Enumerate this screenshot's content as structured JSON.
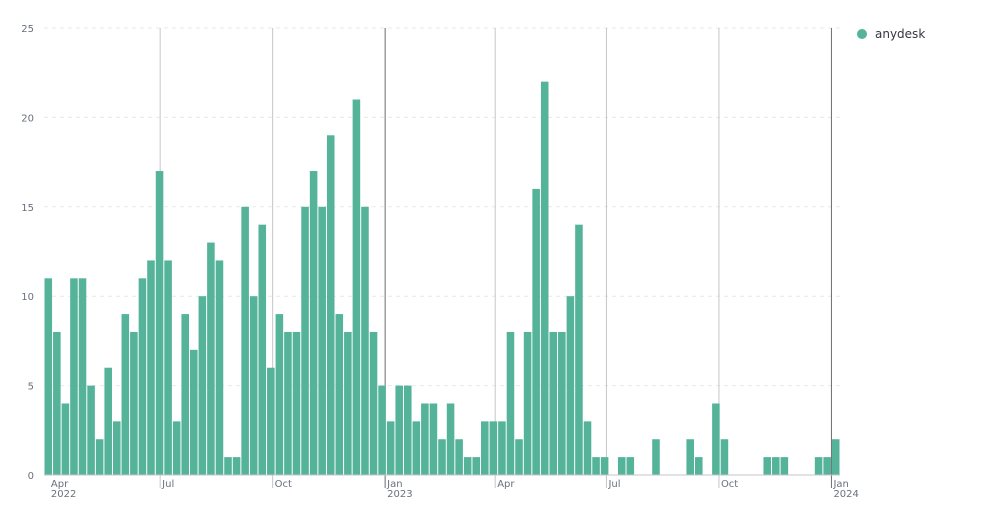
{
  "chart_data": {
    "type": "bar",
    "title": "",
    "xlabel": "",
    "ylabel": "",
    "ylim": [
      0,
      25
    ],
    "y_ticks": [
      0,
      5,
      10,
      15,
      20,
      25
    ],
    "grid": true,
    "legend_position": "top-right",
    "x_start": "2022-03-28",
    "x_ticks": [
      {
        "label": "Apr",
        "year": "2022",
        "date": "2022-04-01",
        "line": "none"
      },
      {
        "label": "Jul",
        "year": "",
        "date": "2022-07-01",
        "line": "light"
      },
      {
        "label": "Oct",
        "year": "",
        "date": "2022-10-01",
        "line": "light"
      },
      {
        "label": "Jan",
        "year": "2023",
        "date": "2023-01-01",
        "line": "dark"
      },
      {
        "label": "Apr",
        "year": "",
        "date": "2023-04-01",
        "line": "light"
      },
      {
        "label": "Jul",
        "year": "",
        "date": "2023-07-01",
        "line": "light"
      },
      {
        "label": "Oct",
        "year": "",
        "date": "2023-10-01",
        "line": "light"
      },
      {
        "label": "Jan",
        "year": "2024",
        "date": "2024-01-01",
        "line": "dark"
      }
    ],
    "series": [
      {
        "name": "anydesk",
        "color": "#54b399",
        "values": [
          11,
          8,
          4,
          11,
          11,
          5,
          2,
          6,
          3,
          9,
          8,
          11,
          12,
          17,
          12,
          3,
          9,
          7,
          10,
          13,
          12,
          1,
          1,
          15,
          10,
          14,
          6,
          9,
          8,
          8,
          15,
          17,
          15,
          19,
          9,
          8,
          21,
          15,
          8,
          5,
          3,
          5,
          5,
          3,
          4,
          4,
          2,
          4,
          2,
          1,
          1,
          3,
          3,
          3,
          8,
          2,
          8,
          16,
          22,
          8,
          8,
          10,
          14,
          3,
          1,
          1,
          0,
          1,
          1,
          0,
          0,
          2,
          0,
          0,
          0,
          2,
          1,
          0,
          4,
          2,
          0,
          0,
          0,
          0,
          1,
          1,
          1,
          0,
          0,
          0,
          1,
          1,
          2
        ]
      }
    ]
  }
}
